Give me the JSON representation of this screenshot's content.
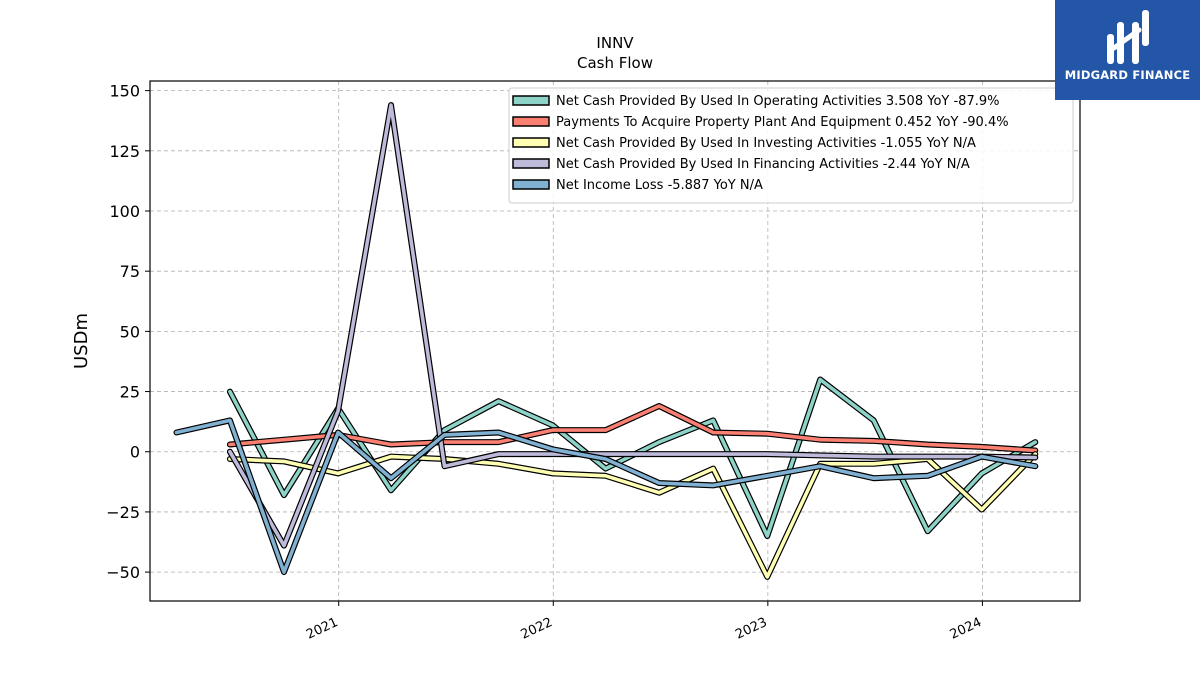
{
  "brand": {
    "name": "MIDGARD FINANCE",
    "bg_color": "#2456a8"
  },
  "chart_data": {
    "type": "line",
    "title": "INNV",
    "subtitle": "Cash Flow",
    "xlabel": "",
    "ylabel": "USDm",
    "x_ticks": [
      "2021",
      "2022",
      "2023",
      "2024"
    ],
    "y_ticks": [
      -50,
      -25,
      0,
      25,
      50,
      75,
      100,
      125,
      150
    ],
    "ylim": [
      -62,
      154
    ],
    "xlim": [
      "2020-02-15",
      "2024-06-15"
    ],
    "grid": true,
    "legend_position": "top-right",
    "series": [
      {
        "name": "Net Cash Provided By Used In Operating Activities  3.508 YoY -87.9%",
        "color": "#8dd3c7",
        "points": [
          [
            "2020-06-30",
            25
          ],
          [
            "2020-09-30",
            -18
          ],
          [
            "2020-12-31",
            18
          ],
          [
            "2021-03-31",
            -16
          ],
          [
            "2021-06-30",
            9
          ],
          [
            "2021-09-30",
            21
          ],
          [
            "2021-12-31",
            11
          ],
          [
            "2022-03-31",
            -7
          ],
          [
            "2022-06-30",
            4
          ],
          [
            "2022-09-30",
            13
          ],
          [
            "2022-12-31",
            -35
          ],
          [
            "2023-03-31",
            30
          ],
          [
            "2023-06-30",
            13
          ],
          [
            "2023-09-30",
            -33
          ],
          [
            "2023-12-31",
            -9
          ],
          [
            "2024-03-31",
            4
          ]
        ]
      },
      {
        "name": "Payments To Acquire Property Plant And Equipment  0.452 YoY -90.4%",
        "color": "#fb8072",
        "points": [
          [
            "2020-06-30",
            3
          ],
          [
            "2020-09-30",
            5
          ],
          [
            "2020-12-31",
            7
          ],
          [
            "2021-03-31",
            3
          ],
          [
            "2021-06-30",
            4
          ],
          [
            "2021-09-30",
            4
          ],
          [
            "2021-12-31",
            9
          ],
          [
            "2022-03-31",
            9
          ],
          [
            "2022-06-30",
            19
          ],
          [
            "2022-09-30",
            8
          ],
          [
            "2022-12-31",
            7.5
          ],
          [
            "2023-03-31",
            5
          ],
          [
            "2023-06-30",
            4.5
          ],
          [
            "2023-09-30",
            3
          ],
          [
            "2023-12-31",
            2
          ],
          [
            "2024-03-31",
            0.5
          ]
        ]
      },
      {
        "name": "Net Cash Provided By Used In Investing Activities  -1.055 YoY N/A",
        "color": "#ffffb3",
        "points": [
          [
            "2020-06-30",
            -3
          ],
          [
            "2020-09-30",
            -4
          ],
          [
            "2020-12-31",
            -9
          ],
          [
            "2021-03-31",
            -2
          ],
          [
            "2021-06-30",
            -3
          ],
          [
            "2021-09-30",
            -5
          ],
          [
            "2021-12-31",
            -9
          ],
          [
            "2022-03-31",
            -10
          ],
          [
            "2022-06-30",
            -17
          ],
          [
            "2022-09-30",
            -7
          ],
          [
            "2022-12-31",
            -52
          ],
          [
            "2023-03-31",
            -5
          ],
          [
            "2023-06-30",
            -5
          ],
          [
            "2023-09-30",
            -3
          ],
          [
            "2023-12-31",
            -24
          ],
          [
            "2024-03-31",
            -1
          ]
        ]
      },
      {
        "name": "Net Cash Provided By Used In Financing Activities  -2.44 YoY N/A",
        "color": "#bebada",
        "points": [
          [
            "2020-06-30",
            0
          ],
          [
            "2020-09-30",
            -39
          ],
          [
            "2020-12-31",
            17
          ],
          [
            "2021-03-31",
            144
          ],
          [
            "2021-06-30",
            -6
          ],
          [
            "2021-09-30",
            -1
          ],
          [
            "2021-12-31",
            -1
          ],
          [
            "2022-03-31",
            -1
          ],
          [
            "2022-06-30",
            -1
          ],
          [
            "2022-09-30",
            -1
          ],
          [
            "2022-12-31",
            -1
          ],
          [
            "2023-03-31",
            -1.5
          ],
          [
            "2023-06-30",
            -2
          ],
          [
            "2023-09-30",
            -2
          ],
          [
            "2023-12-31",
            -2
          ],
          [
            "2024-03-31",
            -2.4
          ]
        ]
      },
      {
        "name": "Net Income Loss  -5.887 YoY N/A",
        "color": "#80b1d3",
        "points": [
          [
            "2020-03-31",
            8
          ],
          [
            "2020-06-30",
            13
          ],
          [
            "2020-09-30",
            -50
          ],
          [
            "2020-12-31",
            8
          ],
          [
            "2021-03-31",
            -11
          ],
          [
            "2021-06-30",
            7
          ],
          [
            "2021-09-30",
            8
          ],
          [
            "2021-12-31",
            1
          ],
          [
            "2022-03-31",
            -3
          ],
          [
            "2022-06-30",
            -13
          ],
          [
            "2022-09-30",
            -14
          ],
          [
            "2022-12-31",
            -10
          ],
          [
            "2023-03-31",
            -6
          ],
          [
            "2023-06-30",
            -11
          ],
          [
            "2023-09-30",
            -10
          ],
          [
            "2023-12-31",
            -2
          ],
          [
            "2024-03-31",
            -6
          ]
        ]
      }
    ]
  }
}
